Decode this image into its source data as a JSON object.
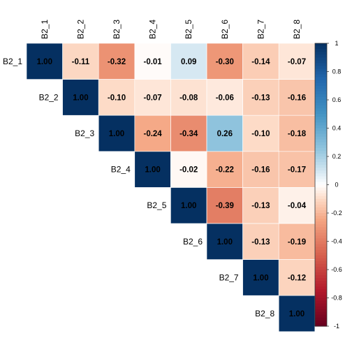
{
  "chart_data": {
    "type": "heatmap",
    "variables": [
      "B2_1",
      "B2_2",
      "B2_3",
      "B2_4",
      "B2_5",
      "B2_6",
      "B2_7",
      "B2_8"
    ],
    "matrix": [
      [
        1.0,
        -0.11,
        -0.32,
        -0.01,
        0.09,
        -0.3,
        -0.14,
        -0.07
      ],
      [
        null,
        1.0,
        -0.1,
        -0.07,
        -0.08,
        -0.06,
        -0.13,
        -0.16
      ],
      [
        null,
        null,
        1.0,
        -0.24,
        -0.34,
        0.26,
        -0.1,
        -0.18
      ],
      [
        null,
        null,
        null,
        1.0,
        -0.02,
        -0.22,
        -0.16,
        -0.17
      ],
      [
        null,
        null,
        null,
        null,
        1.0,
        -0.39,
        -0.13,
        -0.04
      ],
      [
        null,
        null,
        null,
        null,
        null,
        1.0,
        -0.13,
        -0.19
      ],
      [
        null,
        null,
        null,
        null,
        null,
        null,
        1.0,
        -0.12
      ],
      [
        null,
        null,
        null,
        null,
        null,
        null,
        null,
        1.0
      ]
    ],
    "labels": [
      [
        "1.00",
        "-0.11",
        "-0.32",
        "-0.01",
        "0.09",
        "-0.30",
        "-0.14",
        "-0.07"
      ],
      [
        null,
        "1.00",
        "-0.10",
        "-0.07",
        "-0.08",
        "-0.06",
        "-0.13",
        "-0.16"
      ],
      [
        null,
        null,
        "1.00",
        "-0.24",
        "-0.34",
        "0.26",
        "-0.10",
        "-0.18"
      ],
      [
        null,
        null,
        null,
        "1.00",
        "-0.02",
        "-0.22",
        "-0.16",
        "-0.17"
      ],
      [
        null,
        null,
        null,
        null,
        "1.00",
        "-0.39",
        "-0.13",
        "-0.04"
      ],
      [
        null,
        null,
        null,
        null,
        null,
        "1.00",
        "-0.13",
        "-0.19"
      ],
      [
        null,
        null,
        null,
        null,
        null,
        null,
        "1.00",
        "-0.12"
      ],
      [
        null,
        null,
        null,
        null,
        null,
        null,
        null,
        "1.00"
      ]
    ],
    "triangle": "upper",
    "colorbar": {
      "range": [
        -1,
        1
      ],
      "ticks": [
        "1",
        "0.8",
        "0.6",
        "0.4",
        "0.2",
        "0",
        "-0.2",
        "-0.4",
        "-0.6",
        "-0.8",
        "-1"
      ],
      "placement": "right"
    },
    "colors": {
      "negative": "#67001F",
      "neutral": "#FFFFFF",
      "positive": "#053061"
    },
    "title": "",
    "xlabel": "",
    "ylabel": ""
  }
}
